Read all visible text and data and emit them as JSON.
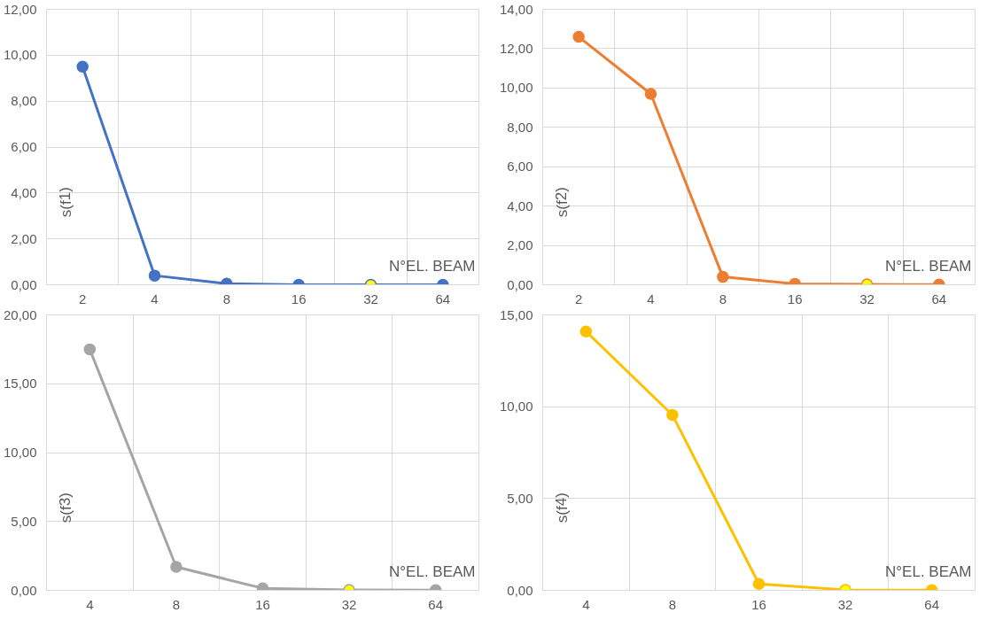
{
  "chart_data": [
    {
      "type": "line",
      "categories": [
        "2",
        "4",
        "8",
        "16",
        "32",
        "64"
      ],
      "xlabel": "N°EL. BEAM",
      "ylabel": "s(f1)",
      "ylim": [
        0,
        12
      ],
      "yticks": [
        {
          "value": 0,
          "label": "0,00"
        },
        {
          "value": 2,
          "label": "2,00"
        },
        {
          "value": 4,
          "label": "4,00"
        },
        {
          "value": 6,
          "label": "6,00"
        },
        {
          "value": 8,
          "label": "8,00"
        },
        {
          "value": 10,
          "label": "10,00"
        },
        {
          "value": 12,
          "label": "12,00"
        }
      ],
      "grid": true,
      "marker": "circle",
      "series": [
        {
          "color": "#4472c4",
          "colors": [
            "#4472c4",
            "#4472c4",
            "#4472c4",
            "#4472c4",
            "#ffff00",
            "#4472c4"
          ],
          "values": [
            9.5,
            0.4,
            0.05,
            0.0,
            0.0,
            0.0
          ]
        }
      ]
    },
    {
      "type": "line",
      "categories": [
        "2",
        "4",
        "8",
        "16",
        "32",
        "64"
      ],
      "xlabel": "N°EL. BEAM",
      "ylabel": "s(f2)",
      "ylim": [
        0,
        14
      ],
      "yticks": [
        {
          "value": 0,
          "label": "0,00"
        },
        {
          "value": 2,
          "label": "2,00"
        },
        {
          "value": 4,
          "label": "4,00"
        },
        {
          "value": 6,
          "label": "6,00"
        },
        {
          "value": 8,
          "label": "8,00"
        },
        {
          "value": 10,
          "label": "10,00"
        },
        {
          "value": 12,
          "label": "12,00"
        },
        {
          "value": 14,
          "label": "14,00"
        }
      ],
      "grid": true,
      "marker": "circle",
      "series": [
        {
          "color": "#ed7d31",
          "colors": [
            "#ed7d31",
            "#ed7d31",
            "#ed7d31",
            "#ed7d31",
            "#ffff00",
            "#ed7d31"
          ],
          "values": [
            12.6,
            9.7,
            0.4,
            0.05,
            0.02,
            0.01
          ]
        }
      ]
    },
    {
      "type": "line",
      "categories": [
        "4",
        "8",
        "16",
        "32",
        "64"
      ],
      "xlabel": "N°EL. BEAM",
      "ylabel": "s(f3)",
      "ylim": [
        0,
        20
      ],
      "yticks": [
        {
          "value": 0,
          "label": "0,00"
        },
        {
          "value": 5,
          "label": "5,00"
        },
        {
          "value": 10,
          "label": "10,00"
        },
        {
          "value": 15,
          "label": "15,00"
        },
        {
          "value": 20,
          "label": "20,00"
        }
      ],
      "grid": true,
      "marker": "circle",
      "series": [
        {
          "color": "#a5a5a5",
          "colors": [
            "#a5a5a5",
            "#a5a5a5",
            "#a5a5a5",
            "#ffff00",
            "#a5a5a5"
          ],
          "values": [
            17.5,
            1.7,
            0.15,
            0.03,
            0.01
          ]
        }
      ]
    },
    {
      "type": "line",
      "categories": [
        "4",
        "8",
        "16",
        "32",
        "64"
      ],
      "xlabel": "N°EL. BEAM",
      "ylabel": "s(f4)",
      "ylim": [
        0,
        15
      ],
      "yticks": [
        {
          "value": 0,
          "label": "0,00"
        },
        {
          "value": 5,
          "label": "5,00"
        },
        {
          "value": 10,
          "label": "10,00"
        },
        {
          "value": 15,
          "label": "15,00"
        }
      ],
      "grid": true,
      "marker": "circle",
      "series": [
        {
          "color": "#ffc000",
          "colors": [
            "#ffc000",
            "#ffc000",
            "#ffc000",
            "#ffff00",
            "#ffc000"
          ],
          "values": [
            14.1,
            9.55,
            0.35,
            0.03,
            0.01
          ]
        }
      ]
    }
  ]
}
